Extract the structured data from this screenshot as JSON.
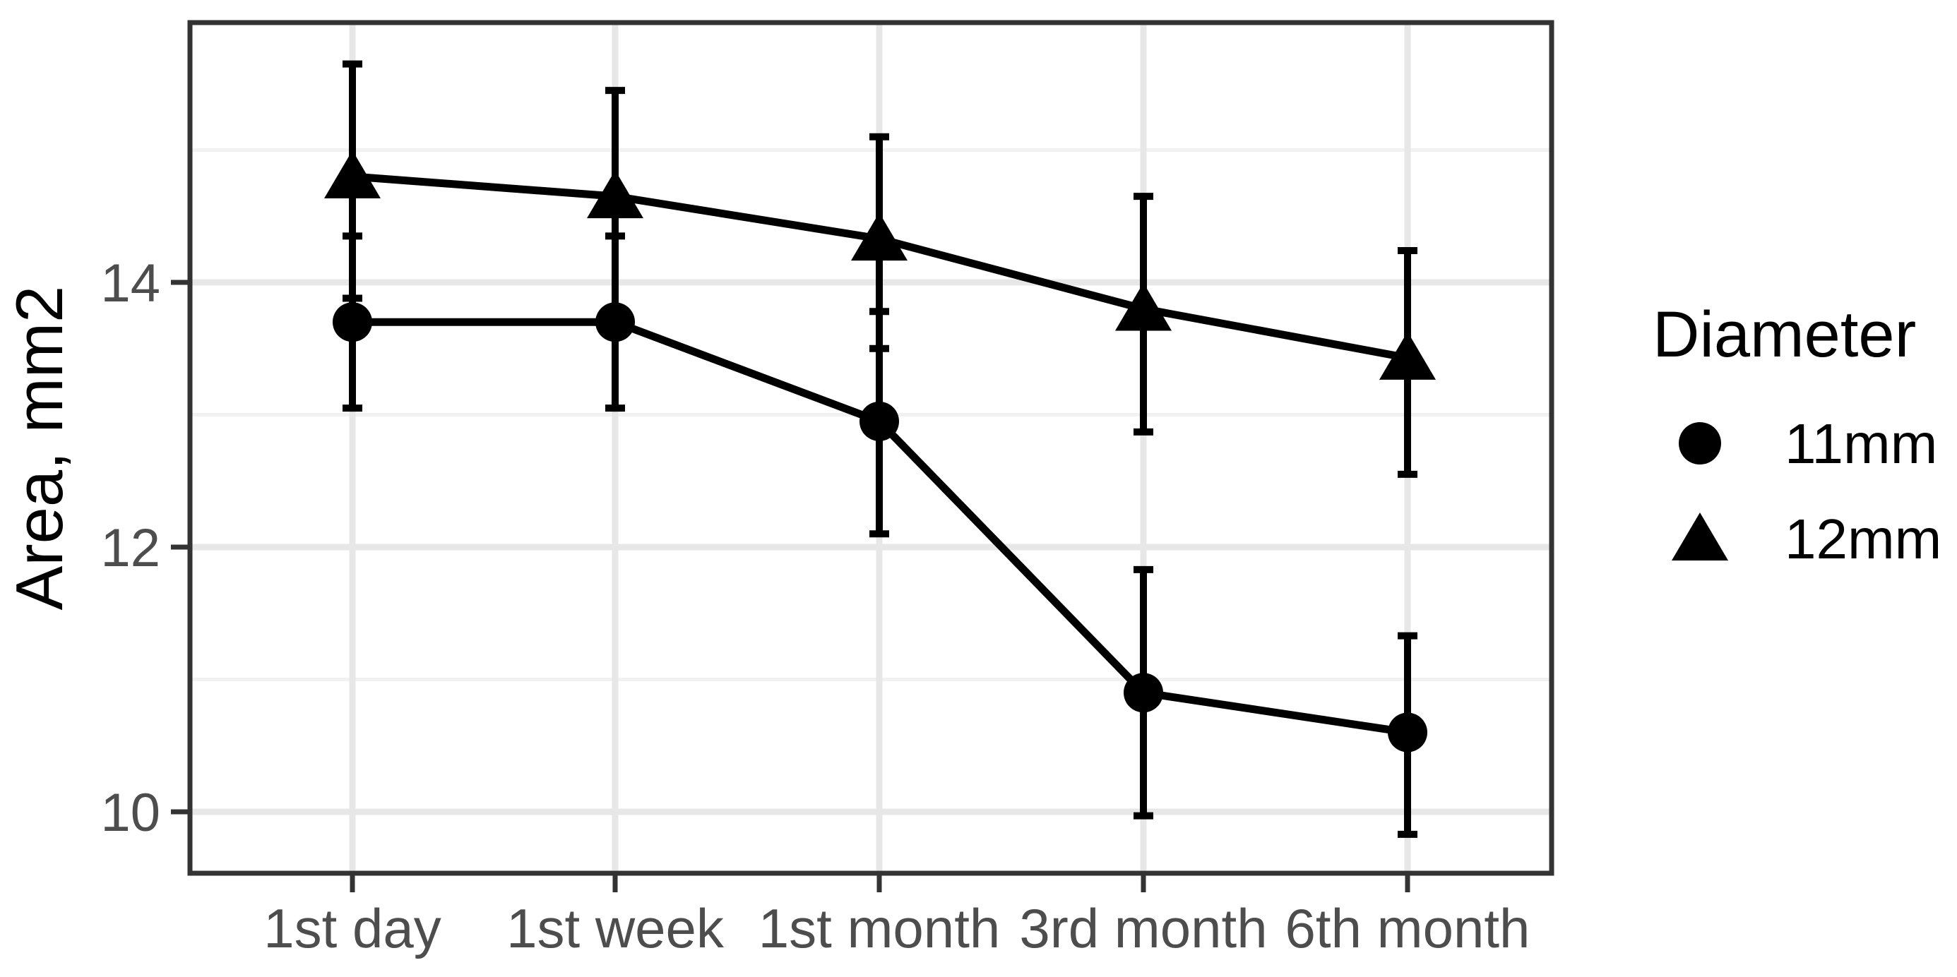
{
  "figure": {
    "background": "#ffffff"
  },
  "colors": {
    "black": "#000000",
    "panel_border": "#333333",
    "tick_mark": "#333333",
    "tick_label": "#4d4d4d",
    "grid_major": "#e7e7e7",
    "grid_minor": "#f1f1f1",
    "series": "#000000"
  },
  "y_axis": {
    "title": "Area, mm2",
    "tick_labels": [
      "10",
      "12",
      "14"
    ],
    "tick_values": [
      10,
      12,
      14
    ],
    "minor_grid_values": [
      11,
      13,
      15
    ]
  },
  "x_axis": {
    "tick_labels": [
      "1st day",
      "1st week",
      "1st month",
      "3rd month",
      "6th month"
    ]
  },
  "legend": {
    "title": "Diameter",
    "items": [
      {
        "label": "11mm",
        "marker": "circle"
      },
      {
        "label": "12mm",
        "marker": "triangle"
      }
    ]
  },
  "chart_data": {
    "type": "line",
    "title": "",
    "xlabel": "",
    "ylabel": "Area, mm2",
    "categories": [
      "1st day",
      "1st week",
      "1st month",
      "3rd month",
      "6th month"
    ],
    "series": [
      {
        "name": "11mm",
        "marker": "circle",
        "values": [
          13.7,
          13.7,
          12.95,
          10.9,
          10.6
        ],
        "error_low": [
          13.05,
          13.05,
          12.1,
          9.97,
          9.83
        ],
        "error_high": [
          14.35,
          14.35,
          13.78,
          11.83,
          11.33
        ]
      },
      {
        "name": "12mm",
        "marker": "triangle",
        "values": [
          14.8,
          14.65,
          14.33,
          13.8,
          13.43
        ],
        "error_low": [
          13.88,
          13.8,
          13.5,
          12.87,
          12.55
        ],
        "error_high": [
          15.65,
          15.45,
          15.1,
          14.65,
          14.24
        ]
      }
    ],
    "ylim": [
      9.54,
      15.96
    ],
    "yticks": [
      10,
      12,
      14
    ],
    "grid": true,
    "legend_position": "right",
    "legend_title": "Diameter"
  }
}
